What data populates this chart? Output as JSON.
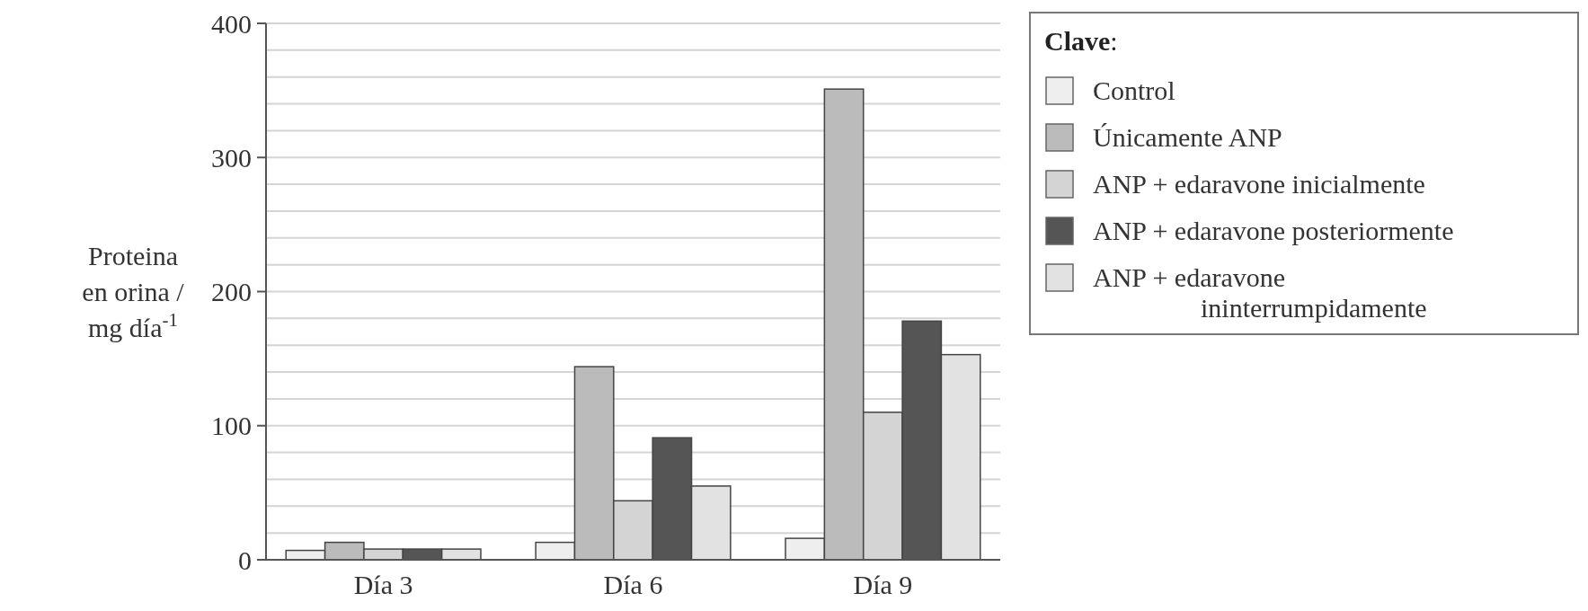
{
  "chart_data": {
    "type": "bar",
    "ylabel": "Proteina en orina / mg día$^{-1}$",
    "legend_title": "Clave:",
    "categories": [
      "Día 3",
      "Día 6",
      "Día 9"
    ],
    "series": [
      {
        "name": "Control",
        "color": "#eeeeee",
        "values": [
          7,
          13,
          16
        ]
      },
      {
        "name": "Únicamente ANP",
        "color": "#bbbbbb",
        "values": [
          13,
          144,
          351
        ]
      },
      {
        "name": "ANP + edaravone inicialmente",
        "color": "#d4d4d4",
        "values": [
          8,
          44,
          110
        ]
      },
      {
        "name": "ANP + edaravone posteriormente",
        "color": "#555555",
        "values": [
          8,
          91,
          178
        ]
      },
      {
        "name": "ANP + edaravone ininterrumpidamente",
        "color": "#e2e2e2",
        "values": [
          8,
          55,
          153
        ]
      }
    ],
    "ylim": [
      0,
      400
    ],
    "yticks": [
      0,
      {
        "value": 20,
        "label": null
      },
      {
        "value": 40,
        "label": null
      },
      {
        "value": 60,
        "label": null
      },
      {
        "value": 80,
        "label": null
      },
      100,
      {
        "value": 120,
        "label": null
      },
      {
        "value": 140,
        "label": null
      },
      {
        "value": 160,
        "label": null
      },
      {
        "value": 180,
        "label": null
      },
      200,
      {
        "value": 220,
        "label": null
      },
      {
        "value": 240,
        "label": null
      },
      {
        "value": 260,
        "label": null
      },
      {
        "value": 280,
        "label": null
      },
      300,
      {
        "value": 320,
        "label": null
      },
      {
        "value": 340,
        "label": null
      },
      {
        "value": 360,
        "label": null
      },
      {
        "value": 380,
        "label": null
      },
      400
    ],
    "grid": "y",
    "legend": "top right"
  }
}
